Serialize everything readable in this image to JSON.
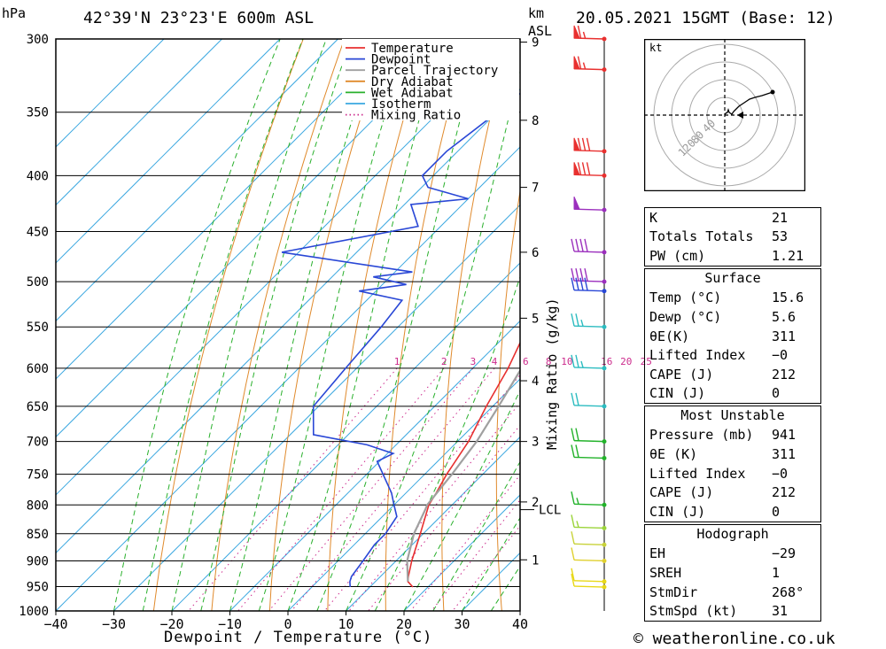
{
  "header": {
    "pressure_unit": "hPa",
    "location": "42°39'N 23°23'E 600m ASL",
    "km_unit": "km",
    "asl_unit": "ASL",
    "datetime": "20.05.2021 15GMT (Base: 12)"
  },
  "footer": {
    "copyright": "© weatheronline.co.uk"
  },
  "chart_data": {
    "type": "skew-t",
    "xlabel": "Dewpoint / Temperature (°C)",
    "ylabel_left": "hPa",
    "mixing_ratio_axis_label": "Mixing Ratio (g/kg)",
    "x_ticks": [
      -40,
      -30,
      -20,
      -10,
      0,
      10,
      20,
      30,
      40
    ],
    "pressure_levels": [
      300,
      350,
      400,
      450,
      500,
      550,
      600,
      650,
      700,
      750,
      800,
      850,
      900,
      950,
      1000
    ],
    "ylim": [
      1000,
      300
    ],
    "xlim": [
      -40,
      40
    ],
    "km_ticks": [
      {
        "label": "9",
        "p": 302
      },
      {
        "label": "8",
        "p": 356
      },
      {
        "label": "7",
        "p": 410
      },
      {
        "label": "6",
        "p": 470
      },
      {
        "label": "5",
        "p": 540
      },
      {
        "label": "4",
        "p": 616
      },
      {
        "label": "3",
        "p": 700
      },
      {
        "label": "2",
        "p": 795
      },
      {
        "label": "1",
        "p": 898
      }
    ],
    "lcl": {
      "label": "LCL",
      "p": 808
    },
    "mixing_ratio_labels": [
      "1",
      "2",
      "3",
      "4",
      "6",
      "8",
      "10",
      "16",
      "20",
      "25"
    ],
    "legend": {
      "position": "top-right",
      "entries": [
        {
          "name": "Temperature",
          "color": "#e8302f"
        },
        {
          "name": "Dewpoint",
          "color": "#2947d6"
        },
        {
          "name": "Parcel Trajectory",
          "color": "#a0a0a0"
        },
        {
          "name": "Dry Adiabat",
          "color": "#e08a2c"
        },
        {
          "name": "Wet Adiabat",
          "color": "#29b02c"
        },
        {
          "name": "Isotherm",
          "color": "#3aa7e0"
        },
        {
          "name": "Mixing Ratio",
          "color": "#cc2a8c"
        }
      ]
    },
    "series": [
      {
        "name": "Temperature",
        "color": "#e8302f",
        "points": [
          [
            951,
            17.4
          ],
          [
            940,
            15.6
          ],
          [
            930,
            14.8
          ],
          [
            900,
            12.7
          ],
          [
            850,
            9.5
          ],
          [
            800,
            6.0
          ],
          [
            780,
            5.2
          ],
          [
            750,
            3.8
          ],
          [
            700,
            1.9
          ],
          [
            650,
            -1.1
          ],
          [
            600,
            -3.9
          ],
          [
            560,
            -6.9
          ],
          [
            530,
            -9.7
          ],
          [
            500,
            -12.7
          ],
          [
            470,
            -15.7
          ],
          [
            450,
            -18.2
          ],
          [
            430,
            -21.6
          ],
          [
            410,
            -22.6
          ],
          [
            400,
            -23.6
          ],
          [
            380,
            -26.6
          ],
          [
            350,
            -31.7
          ],
          [
            320,
            -37.4
          ],
          [
            300,
            -41.2
          ]
        ]
      },
      {
        "name": "Dewpoint",
        "color": "#2947d6",
        "points": [
          [
            951,
            6.6
          ],
          [
            940,
            5.6
          ],
          [
            930,
            5.0
          ],
          [
            900,
            4.3
          ],
          [
            870,
            3.5
          ],
          [
            850,
            3.5
          ],
          [
            820,
            2.5
          ],
          [
            800,
            0.0
          ],
          [
            780,
            -2.5
          ],
          [
            730,
            -10.4
          ],
          [
            718,
            -9.0
          ],
          [
            705,
            -15.0
          ],
          [
            690,
            -26.0
          ],
          [
            650,
            -30.9
          ],
          [
            600,
            -31.9
          ],
          [
            550,
            -32.9
          ],
          [
            520,
            -33.9
          ],
          [
            510,
            -42.9
          ],
          [
            503,
            -35.9
          ],
          [
            495,
            -42.9
          ],
          [
            490,
            -37.0
          ],
          [
            470,
            -62.9
          ],
          [
            445,
            -43.9
          ],
          [
            425,
            -48.9
          ],
          [
            420,
            -40.0
          ],
          [
            410,
            -48.9
          ],
          [
            400,
            -51.9
          ],
          [
            380,
            -51.9
          ],
          [
            350,
            -49.9
          ],
          [
            310,
            -47.9
          ],
          [
            300,
            -48.9
          ]
        ]
      },
      {
        "name": "Parcel Trajectory",
        "color": "#a0a0a0",
        "points": [
          [
            940,
            15.6
          ],
          [
            900,
            11.9
          ],
          [
            850,
            8.4
          ],
          [
            808,
            6.2
          ],
          [
            800,
            5.7
          ],
          [
            750,
            4.7
          ],
          [
            700,
            3.3
          ],
          [
            650,
            1.0
          ],
          [
            600,
            -1.6
          ],
          [
            550,
            -4.6
          ],
          [
            500,
            -9.2
          ],
          [
            450,
            -14.4
          ],
          [
            400,
            -20.8
          ],
          [
            350,
            -28.4
          ],
          [
            300,
            -37.4
          ]
        ]
      }
    ],
    "indices": {
      "K": "21",
      "Totals Totals": "53",
      "PW (cm)": "1.21"
    },
    "surface": {
      "title": "Surface",
      "rows": [
        {
          "label": "Temp (°C)",
          "value": "15.6"
        },
        {
          "label": "Dewp (°C)",
          "value": "5.6"
        },
        {
          "label": "θE(K)",
          "value": "311"
        },
        {
          "label": "Lifted Index",
          "value": "−0"
        },
        {
          "label": "CAPE (J)",
          "value": "212"
        },
        {
          "label": "CIN (J)",
          "value": "0"
        }
      ]
    },
    "most_unstable": {
      "title": "Most Unstable",
      "rows": [
        {
          "label": "Pressure (mb)",
          "value": "941"
        },
        {
          "label": "θE (K)",
          "value": "311"
        },
        {
          "label": "Lifted Index",
          "value": "−0"
        },
        {
          "label": "CAPE (J)",
          "value": "212"
        },
        {
          "label": "CIN (J)",
          "value": "0"
        }
      ]
    },
    "hodograph_indices": {
      "title": "Hodograph",
      "rows": [
        {
          "label": "EH",
          "value": "−29"
        },
        {
          "label": "SREH",
          "value": "1"
        },
        {
          "label": "StmDir",
          "value": "268°"
        },
        {
          "label": "StmSpd (kt)",
          "value": "31"
        }
      ]
    },
    "hodograph": {
      "unit_label": "kt",
      "ring_labels": [
        "40",
        "80",
        "120"
      ],
      "points": [
        [
          0,
          0
        ],
        [
          1,
          2
        ],
        [
          3,
          3
        ],
        [
          4,
          6
        ],
        [
          5,
          3
        ],
        [
          8,
          1
        ],
        [
          10,
          4
        ],
        [
          12,
          6
        ],
        [
          14,
          8
        ],
        [
          16,
          10
        ],
        [
          22,
          14
        ],
        [
          28,
          18
        ],
        [
          34,
          20
        ],
        [
          42,
          22
        ],
        [
          54,
          26
        ]
      ]
    },
    "wind_barbs": [
      {
        "p": 300,
        "color": "#e8302f",
        "speed": 65
      },
      {
        "p": 320,
        "color": "#e8302f",
        "speed": 65
      },
      {
        "p": 380,
        "color": "#e8302f",
        "speed": 80
      },
      {
        "p": 400,
        "color": "#e8302f",
        "speed": 80
      },
      {
        "p": 430,
        "color": "#9b2fbd",
        "speed": 50
      },
      {
        "p": 470,
        "color": "#9b2fbd",
        "speed": 40
      },
      {
        "p": 500,
        "color": "#9b2fbd",
        "speed": 40
      },
      {
        "p": 510,
        "color": "#2947d6",
        "speed": 40
      },
      {
        "p": 550,
        "color": "#2cbcc0",
        "speed": 25
      },
      {
        "p": 600,
        "color": "#2cbcc0",
        "speed": 25
      },
      {
        "p": 650,
        "color": "#2cbcc0",
        "speed": 20
      },
      {
        "p": 700,
        "color": "#22b22a",
        "speed": 20
      },
      {
        "p": 725,
        "color": "#22b22a",
        "speed": 20
      },
      {
        "p": 800,
        "color": "#22b22a",
        "speed": 15
      },
      {
        "p": 840,
        "color": "#9bd43a",
        "speed": 15
      },
      {
        "p": 870,
        "color": "#c8d23a",
        "speed": 10
      },
      {
        "p": 900,
        "color": "#e0d030",
        "speed": 10
      },
      {
        "p": 940,
        "color": "#e8d818",
        "speed": 10
      },
      {
        "p": 951,
        "color": "#e8d818",
        "speed": 10
      }
    ]
  }
}
